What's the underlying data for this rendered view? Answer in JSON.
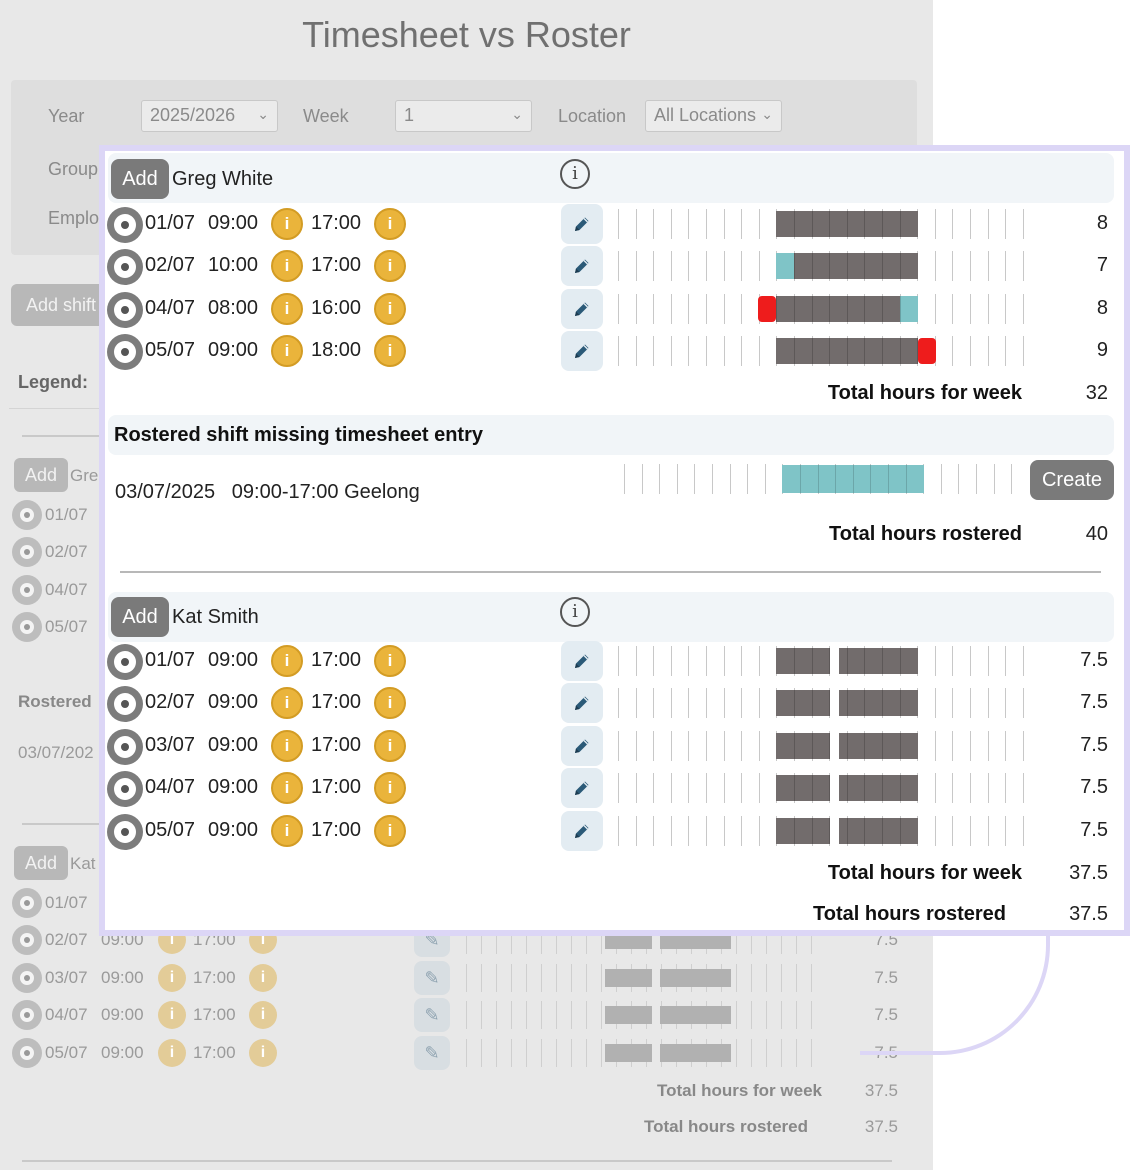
{
  "page_title": "Timesheet vs Roster",
  "filters": {
    "year_label": "Year",
    "year_value": "2025/2026",
    "week_label": "Week",
    "week_value": "1",
    "location_label": "Location",
    "location_value": "All Locations",
    "group_label": "Group",
    "employee_label": "Emplo"
  },
  "add_shift_label": "Add shift",
  "legend_label": "Legend:",
  "add_label": "Add",
  "create_label": "Create",
  "info_glyph": "i",
  "about_glyph": "i",
  "employees": [
    {
      "name": "Greg White",
      "shifts": [
        {
          "date": "01/07",
          "start": "09:00",
          "end": "17:00",
          "hours": "8",
          "rostered": [
            "09:00",
            "17:00"
          ],
          "worked": [
            "09:00",
            "17:00"
          ]
        },
        {
          "date": "02/07",
          "start": "10:00",
          "end": "17:00",
          "hours": "7",
          "rostered": [
            "09:00",
            "17:00"
          ],
          "worked": [
            "10:00",
            "17:00"
          ]
        },
        {
          "date": "04/07",
          "start": "08:00",
          "end": "16:00",
          "hours": "8",
          "rostered": [
            "09:00",
            "17:00"
          ],
          "worked": [
            "08:00",
            "16:00"
          ]
        },
        {
          "date": "05/07",
          "start": "09:00",
          "end": "18:00",
          "hours": "9",
          "rostered": [
            "09:00",
            "17:00"
          ],
          "worked": [
            "09:00",
            "18:00"
          ]
        }
      ],
      "total_week_label": "Total hours for week",
      "total_week": "32",
      "missing_title": "Rostered shift missing timesheet entry",
      "missing_entry": "03/07/2025   09:00-17:00 Geelong",
      "total_rostered_label": "Total hours rostered",
      "total_rostered": "40"
    },
    {
      "name": "Kat Smith",
      "shifts": [
        {
          "date": "01/07",
          "start": "09:00",
          "end": "17:00",
          "hours": "7.5"
        },
        {
          "date": "02/07",
          "start": "09:00",
          "end": "17:00",
          "hours": "7.5"
        },
        {
          "date": "03/07",
          "start": "09:00",
          "end": "17:00",
          "hours": "7.5"
        },
        {
          "date": "04/07",
          "start": "09:00",
          "end": "17:00",
          "hours": "7.5"
        },
        {
          "date": "05/07",
          "start": "09:00",
          "end": "17:00",
          "hours": "7.5"
        }
      ],
      "total_week_label": "Total hours for week",
      "total_week": "37.5",
      "total_rostered_label": "Total hours rostered",
      "total_rostered": "37.5"
    }
  ],
  "background": {
    "rostered_label": "Rostered",
    "missing_date": "03/07/202",
    "greg_short": "Gre",
    "kat_short": "Kat",
    "greg_dates": [
      "01/07",
      "02/07",
      "04/07",
      "05/07"
    ],
    "kat_rows": [
      {
        "date": "01/07",
        "start": "",
        "end": "",
        "hours": ""
      },
      {
        "date": "02/07",
        "start": "09:00",
        "end": "17:00",
        "hours": "7.5"
      },
      {
        "date": "03/07",
        "start": "09:00",
        "end": "17:00",
        "hours": "7.5"
      },
      {
        "date": "04/07",
        "start": "09:00",
        "end": "17:00",
        "hours": "7.5"
      },
      {
        "date": "05/07",
        "start": "09:00",
        "end": "17:00",
        "hours": "7.5"
      }
    ],
    "total_week_label": "Total hours for week",
    "total_week": "37.5",
    "total_rostered_label": "Total hours rostered",
    "total_rostered": "37.5"
  },
  "colors": {
    "worked_bar": "#726c6c",
    "rostered_only": "#7fc4c7",
    "outside_roster": "#ee1c1c",
    "info_icon": "#eab43b",
    "popup_border": "#dcd6f6"
  },
  "icons": {
    "select": "radio-select-icon",
    "edit": "pencil-icon",
    "info": "info-icon",
    "about": "about-info-icon"
  }
}
